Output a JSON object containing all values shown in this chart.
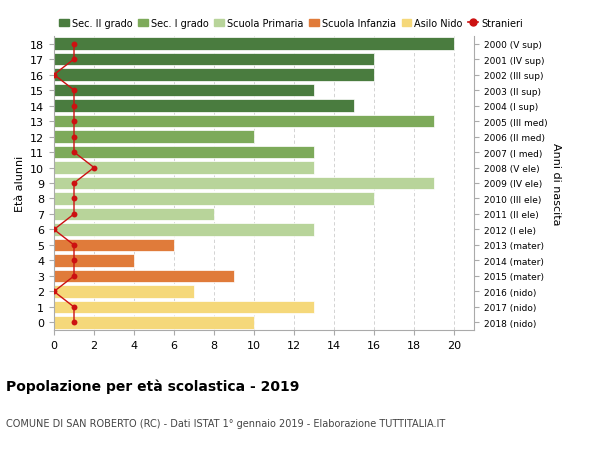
{
  "ages": [
    18,
    17,
    16,
    15,
    14,
    13,
    12,
    11,
    10,
    9,
    8,
    7,
    6,
    5,
    4,
    3,
    2,
    1,
    0
  ],
  "right_labels": [
    "2000 (V sup)",
    "2001 (IV sup)",
    "2002 (III sup)",
    "2003 (II sup)",
    "2004 (I sup)",
    "2005 (III med)",
    "2006 (II med)",
    "2007 (I med)",
    "2008 (V ele)",
    "2009 (IV ele)",
    "2010 (III ele)",
    "2011 (II ele)",
    "2012 (I ele)",
    "2013 (mater)",
    "2014 (mater)",
    "2015 (mater)",
    "2016 (nido)",
    "2017 (nido)",
    "2018 (nido)"
  ],
  "bar_values": [
    20,
    16,
    16,
    13,
    15,
    19,
    10,
    13,
    13,
    19,
    16,
    8,
    13,
    6,
    4,
    9,
    7,
    13,
    10
  ],
  "bar_colors": [
    "#4a7c3f",
    "#4a7c3f",
    "#4a7c3f",
    "#4a7c3f",
    "#4a7c3f",
    "#7daa5a",
    "#7daa5a",
    "#7daa5a",
    "#b8d49a",
    "#b8d49a",
    "#b8d49a",
    "#b8d49a",
    "#b8d49a",
    "#e07b3a",
    "#e07b3a",
    "#e07b3a",
    "#f5d87a",
    "#f5d87a",
    "#f5d87a"
  ],
  "stranieri_values": [
    1,
    1,
    0,
    1,
    1,
    1,
    1,
    1,
    2,
    1,
    1,
    1,
    0,
    1,
    1,
    1,
    0,
    1,
    1
  ],
  "stranieri_color": "#cc1111",
  "legend_items": [
    {
      "label": "Sec. II grado",
      "color": "#4a7c3f",
      "type": "patch"
    },
    {
      "label": "Sec. I grado",
      "color": "#7daa5a",
      "type": "patch"
    },
    {
      "label": "Scuola Primaria",
      "color": "#b8d49a",
      "type": "patch"
    },
    {
      "label": "Scuola Infanzia",
      "color": "#e07b3a",
      "type": "patch"
    },
    {
      "label": "Asilo Nido",
      "color": "#f5d87a",
      "type": "patch"
    },
    {
      "label": "Stranieri",
      "color": "#cc1111",
      "type": "line"
    }
  ],
  "ylabel": "Età alunni",
  "right_axis_label": "Anni di nascita",
  "title": "Popolazione per età scolastica - 2019",
  "subtitle": "COMUNE DI SAN ROBERTO (RC) - Dati ISTAT 1° gennaio 2019 - Elaborazione TUTTITALIA.IT",
  "xlim": [
    0,
    21
  ],
  "xticks": [
    0,
    2,
    4,
    6,
    8,
    10,
    12,
    14,
    16,
    18,
    20
  ],
  "bg_color": "#ffffff",
  "grid_color": "#cccccc"
}
